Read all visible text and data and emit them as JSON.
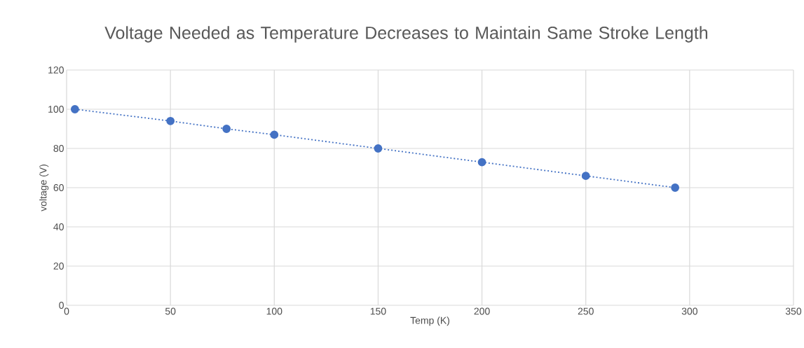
{
  "chart_data": {
    "type": "line",
    "title": "Voltage Needed as Temperature Decreases to Maintain Same Stroke Length",
    "xlabel": "Temp (K)",
    "ylabel": "voltage (V)",
    "x": [
      4,
      50,
      77,
      100,
      150,
      200,
      250,
      293
    ],
    "series": [
      {
        "color": "#4472c4",
        "values": [
          100,
          94,
          90,
          87,
          80,
          73,
          66,
          60
        ]
      }
    ],
    "xlim": [
      0,
      350
    ],
    "xticks": [
      0,
      50,
      100,
      150,
      200,
      250,
      300,
      350
    ],
    "ylim": [
      0,
      120
    ],
    "yticks": [
      0,
      20,
      40,
      60,
      80,
      100,
      120
    ],
    "grid": true,
    "marker": "circle",
    "line_style": "dotted"
  }
}
